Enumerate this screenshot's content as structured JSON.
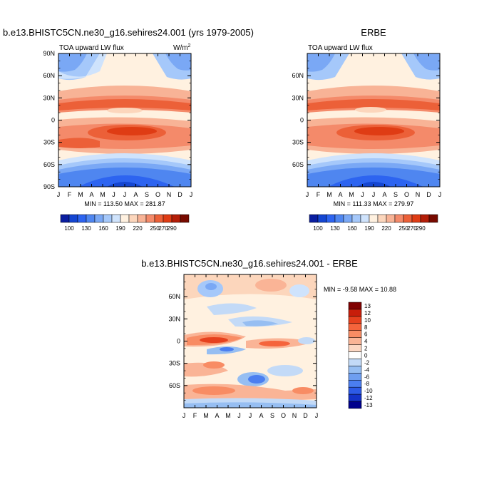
{
  "chart_data": [
    {
      "type": "heatmap",
      "title": "b.e13.BHISTC5CN.ne30_g16.sehires24.001 (yrs 1979-2005)",
      "subtitle_left": "TOA upward LW flux",
      "units_main": "W/m",
      "units_exp": "2",
      "stats": "MIN = 113.50 MAX = 281.87",
      "x_ticks": [
        "J",
        "F",
        "M",
        "A",
        "M",
        "J",
        "J",
        "A",
        "S",
        "O",
        "N",
        "D",
        "J"
      ],
      "y_ticks": [
        "90N",
        "60N",
        "30N",
        "0",
        "30S",
        "60S",
        "90S"
      ],
      "ylim": [
        -90,
        90
      ],
      "colorbar_levels": [
        100,
        130,
        160,
        190,
        220,
        250,
        270,
        290
      ],
      "colorbar_label_values": [
        "100",
        "130",
        "160",
        "190",
        "220",
        "250",
        "270",
        "290"
      ]
    },
    {
      "type": "heatmap",
      "title": "ERBE",
      "subtitle_left": "TOA upward LW flux",
      "stats": "MIN = 111.33 MAX = 279.97",
      "x_ticks": [
        "J",
        "F",
        "M",
        "A",
        "M",
        "J",
        "J",
        "A",
        "S",
        "O",
        "N",
        "D",
        "J"
      ],
      "y_ticks": [
        "60N",
        "30N",
        "0",
        "30S",
        "60S"
      ],
      "ylim": [
        -90,
        90
      ],
      "colorbar_label_values": [
        "100",
        "130",
        "160",
        "190",
        "220",
        "250",
        "270",
        "290"
      ]
    },
    {
      "type": "heatmap",
      "title": "b.e13.BHISTC5CN.ne30_g16.sehires24.001 - ERBE",
      "stats": "MIN =  -9.58 MAX =  10.88",
      "x_ticks": [
        "J",
        "F",
        "M",
        "A",
        "M",
        "J",
        "J",
        "A",
        "S",
        "O",
        "N",
        "D",
        "J"
      ],
      "y_ticks": [
        "60N",
        "30N",
        "0",
        "30S",
        "60S"
      ],
      "ylim": [
        -90,
        90
      ],
      "colorbar_label_values": [
        "13",
        "12",
        "10",
        "8",
        "6",
        "4",
        "2",
        "0",
        "-2",
        "-4",
        "-6",
        "-8",
        "-10",
        "-12",
        "-13"
      ]
    }
  ],
  "colors": {
    "flux_palette": [
      "#0a1ea0",
      "#1446d2",
      "#2d64f0",
      "#4f86f0",
      "#7aa8f5",
      "#a5c8fa",
      "#cfe3fc",
      "#fff1e0",
      "#fcd6bc",
      "#f8b396",
      "#f48a6a",
      "#ec6038",
      "#df3c14",
      "#b41e08",
      "#780a00"
    ],
    "diff_palette": [
      "#800000",
      "#c81e0a",
      "#e6411e",
      "#f5643c",
      "#f88c64",
      "#fab496",
      "#fcd7c3",
      "#ffffff",
      "#c3daf7",
      "#96bef2",
      "#6e9ef0",
      "#4b7ef0",
      "#2d5ae6",
      "#1432c8",
      "#00008c"
    ]
  }
}
